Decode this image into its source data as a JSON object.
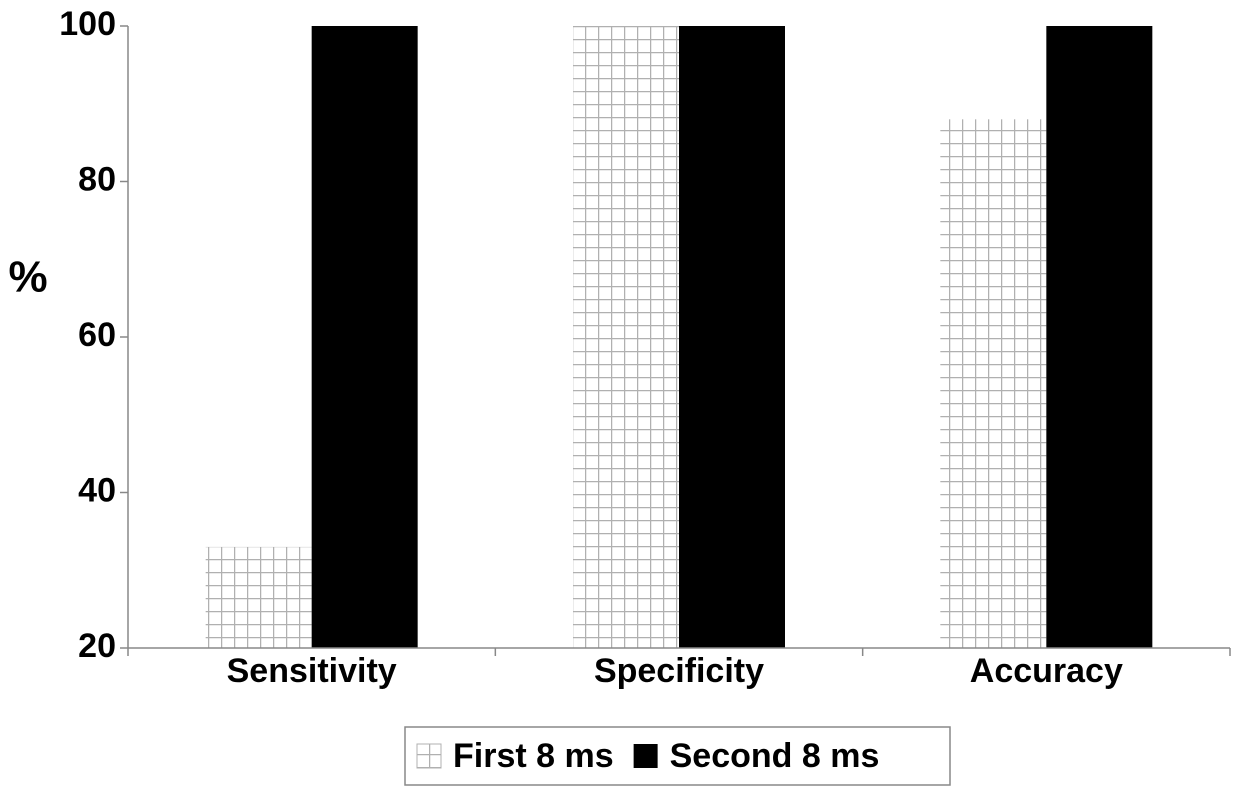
{
  "chart_data": {
    "type": "bar",
    "y_label": "%",
    "categories": [
      "Sensitivity",
      "Specificity",
      "Accuracy"
    ],
    "series": [
      {
        "name": "First 8 ms",
        "color": "#b0b0b0",
        "pattern": "grid",
        "values": [
          33,
          100,
          88
        ]
      },
      {
        "name": "Second 8 ms",
        "color": "#000000",
        "values": [
          100,
          100,
          100
        ]
      }
    ],
    "ylim": [
      20,
      100
    ],
    "yticks": [
      20,
      40,
      60,
      80,
      100
    ],
    "grid": false,
    "legend": "bottom"
  }
}
